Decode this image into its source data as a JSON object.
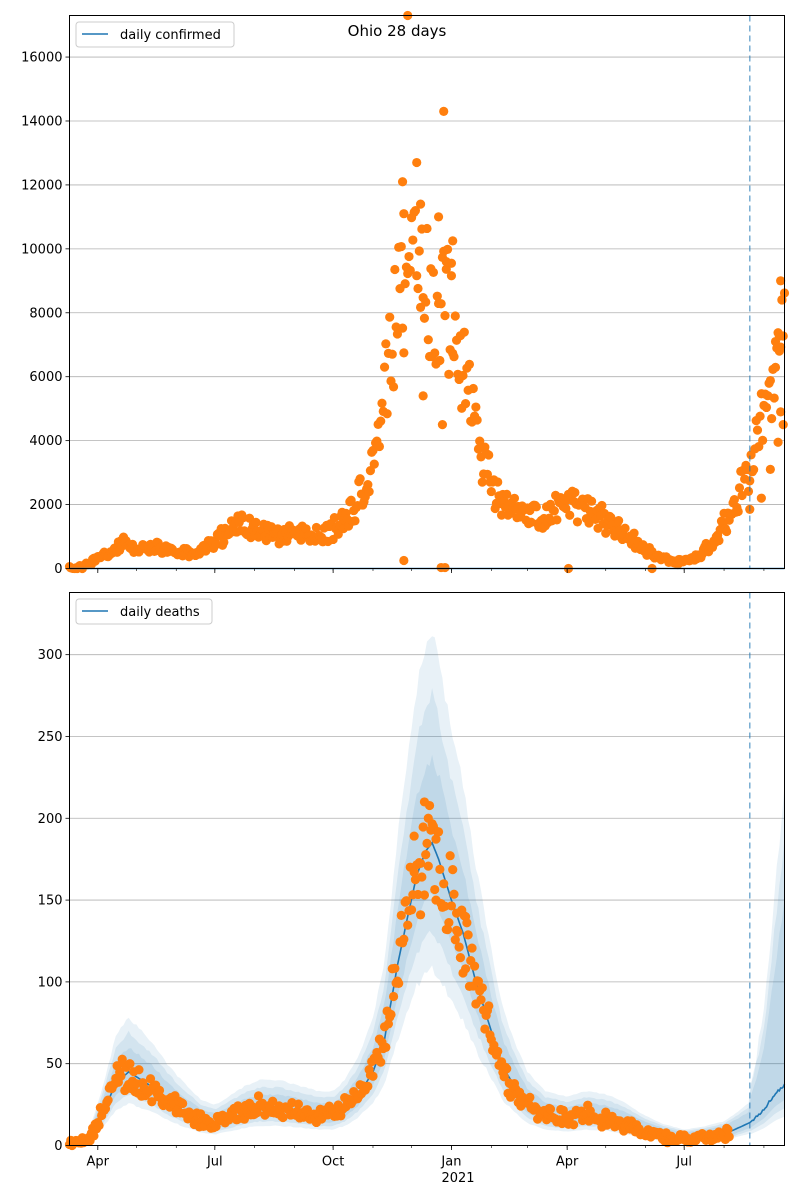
{
  "chart_data": [
    {
      "type": "scatter",
      "title": "Ohio 28 days",
      "xlabel": "",
      "ylabel": "",
      "x_tick_labels": [
        "Apr",
        "Jul",
        "Oct",
        "Jan",
        "Apr",
        "Jul"
      ],
      "x_tick_dates": [
        "2020-04-01",
        "2020-07-01",
        "2020-10-01",
        "2021-01-01",
        "2021-04-01",
        "2021-07-01"
      ],
      "x_year_label": "2021",
      "xlim": [
        "2020-03-10",
        "2021-09-17"
      ],
      "ylim": [
        0,
        17300
      ],
      "y_ticks": [
        0,
        2000,
        4000,
        6000,
        8000,
        10000,
        12000,
        14000,
        16000
      ],
      "grid": "y",
      "legend": {
        "position": "top-left",
        "entries": [
          "daily confirmed"
        ]
      },
      "vline_date": "2021-08-21",
      "colors": {
        "line": "#1f77b4",
        "points": "#ff7f0e",
        "vline": "#1f77b4"
      },
      "line_series": {
        "name": "daily confirmed",
        "value": 0
      },
      "anchors": [
        [
          "2020-03-10",
          10
        ],
        [
          "2020-03-20",
          50
        ],
        [
          "2020-03-31",
          300
        ],
        [
          "2020-04-10",
          450
        ],
        [
          "2020-04-20",
          800
        ],
        [
          "2020-05-01",
          600
        ],
        [
          "2020-05-15",
          650
        ],
        [
          "2020-06-01",
          550
        ],
        [
          "2020-06-15",
          420
        ],
        [
          "2020-07-01",
          850
        ],
        [
          "2020-07-15",
          1250
        ],
        [
          "2020-07-25",
          1400
        ],
        [
          "2020-08-05",
          1150
        ],
        [
          "2020-08-20",
          1050
        ],
        [
          "2020-09-01",
          1150
        ],
        [
          "2020-09-15",
          1000
        ],
        [
          "2020-10-01",
          1200
        ],
        [
          "2020-10-10",
          1500
        ],
        [
          "2020-10-20",
          2100
        ],
        [
          "2020-11-01",
          3300
        ],
        [
          "2020-11-10",
          5500
        ],
        [
          "2020-11-20",
          8100
        ],
        [
          "2020-12-01",
          9000
        ],
        [
          "2020-12-10",
          9300
        ],
        [
          "2020-12-20",
          8500
        ],
        [
          "2021-01-01",
          7800
        ],
        [
          "2021-01-10",
          6200
        ],
        [
          "2021-01-20",
          4300
        ],
        [
          "2021-02-01",
          2600
        ],
        [
          "2021-02-15",
          1900
        ],
        [
          "2021-03-01",
          1600
        ],
        [
          "2021-03-15",
          1650
        ],
        [
          "2021-04-01",
          2000
        ],
        [
          "2021-04-15",
          1800
        ],
        [
          "2021-05-01",
          1500
        ],
        [
          "2021-05-15",
          1100
        ],
        [
          "2021-06-01",
          600
        ],
        [
          "2021-06-15",
          300
        ],
        [
          "2021-06-25",
          200
        ],
        [
          "2021-07-10",
          300
        ],
        [
          "2021-07-25",
          900
        ],
        [
          "2021-08-05",
          1700
        ],
        [
          "2021-08-15",
          2600
        ],
        [
          "2021-08-25",
          3600
        ],
        [
          "2021-09-05",
          5500
        ],
        [
          "2021-09-17",
          7800
        ]
      ],
      "outliers": [
        [
          "2020-11-28",
          17300
        ],
        [
          "2020-12-26",
          14300
        ],
        [
          "2020-12-05",
          12700
        ],
        [
          "2020-11-24",
          12100
        ],
        [
          "2020-12-22",
          11000
        ],
        [
          "2020-12-08",
          11400
        ],
        [
          "2021-01-02",
          10250
        ],
        [
          "2020-11-25",
          11100
        ],
        [
          "2020-12-28",
          9600
        ],
        [
          "2021-01-01",
          9550
        ],
        [
          "2020-11-25",
          250
        ],
        [
          "2020-12-24",
          30
        ],
        [
          "2020-12-27",
          30
        ],
        [
          "2021-04-02",
          0
        ],
        [
          "2021-06-06",
          0
        ],
        [
          "2020-12-25",
          4500
        ],
        [
          "2020-12-10",
          5400
        ],
        [
          "2021-09-14",
          9000
        ],
        [
          "2021-09-15",
          8400
        ],
        [
          "2021-09-10",
          7100
        ],
        [
          "2021-09-13",
          6800
        ],
        [
          "2021-08-30",
          2200
        ],
        [
          "2021-08-21",
          1850
        ],
        [
          "2021-09-12",
          3950
        ],
        [
          "2021-09-06",
          3100
        ],
        [
          "2021-09-16",
          4500
        ],
        [
          "2021-09-14",
          4900
        ]
      ]
    },
    {
      "type": "line",
      "title": "",
      "xlabel": "",
      "ylabel": "",
      "x_tick_labels": [
        "Apr",
        "Jul",
        "Oct",
        "Jan",
        "Apr",
        "Jul"
      ],
      "x_tick_dates": [
        "2020-04-01",
        "2020-07-01",
        "2020-10-01",
        "2021-01-01",
        "2021-04-01",
        "2021-07-01"
      ],
      "x_year_label": "2021",
      "xlim": [
        "2020-03-10",
        "2021-09-17"
      ],
      "ylim": [
        0,
        338
      ],
      "y_ticks": [
        0,
        50,
        100,
        150,
        200,
        250,
        300
      ],
      "grid": "y",
      "legend": {
        "position": "top-left",
        "entries": [
          "daily deaths"
        ]
      },
      "vline_date": "2021-08-21",
      "colors": {
        "line": "#1f77b4",
        "points": "#ff7f0e",
        "band": "#1f77b4",
        "vline": "#1f77b4"
      },
      "series": [
        {
          "name": "daily deaths",
          "median": [
            [
              "2020-03-10",
              0
            ],
            [
              "2020-03-25",
              3
            ],
            [
              "2020-04-05",
              20
            ],
            [
              "2020-04-15",
              38
            ],
            [
              "2020-04-25",
              45
            ],
            [
              "2020-05-05",
              40
            ],
            [
              "2020-05-15",
              35
            ],
            [
              "2020-05-25",
              28
            ],
            [
              "2020-06-05",
              22
            ],
            [
              "2020-06-20",
              15
            ],
            [
              "2020-07-01",
              13
            ],
            [
              "2020-07-15",
              17
            ],
            [
              "2020-07-25",
              20
            ],
            [
              "2020-08-05",
              22
            ],
            [
              "2020-08-20",
              22
            ],
            [
              "2020-09-05",
              20
            ],
            [
              "2020-09-20",
              18
            ],
            [
              "2020-10-01",
              18
            ],
            [
              "2020-10-10",
              22
            ],
            [
              "2020-10-20",
              30
            ],
            [
              "2020-11-01",
              45
            ],
            [
              "2020-11-10",
              65
            ],
            [
              "2020-11-20",
              110
            ],
            [
              "2020-11-28",
              140
            ],
            [
              "2020-12-05",
              165
            ],
            [
              "2020-12-12",
              180
            ],
            [
              "2020-12-17",
              185
            ],
            [
              "2020-12-22",
              175
            ],
            [
              "2021-01-01",
              150
            ],
            [
              "2021-01-10",
              130
            ],
            [
              "2021-01-20",
              100
            ],
            [
              "2021-02-01",
              70
            ],
            [
              "2021-02-10",
              48
            ],
            [
              "2021-02-20",
              35
            ],
            [
              "2021-03-01",
              25
            ],
            [
              "2021-03-15",
              18
            ],
            [
              "2021-04-01",
              16
            ],
            [
              "2021-04-15",
              18
            ],
            [
              "2021-05-01",
              17
            ],
            [
              "2021-05-15",
              14
            ],
            [
              "2021-06-01",
              9
            ],
            [
              "2021-06-15",
              6
            ],
            [
              "2021-07-01",
              4
            ],
            [
              "2021-07-15",
              5
            ],
            [
              "2021-08-01",
              7
            ],
            [
              "2021-08-10",
              10
            ],
            [
              "2021-08-21",
              14
            ],
            [
              "2021-09-01",
              22
            ],
            [
              "2021-09-10",
              32
            ],
            [
              "2021-09-17",
              37
            ]
          ],
          "bands": [
            {
              "width": [
                0.65,
                0.7
              ],
              "future_mult": [
                1.05,
                4.8
              ]
            },
            {
              "width": [
                0.45,
                0.5
              ],
              "future_mult": [
                0.85,
                3.9
              ]
            },
            {
              "width": [
                0.25,
                0.3
              ],
              "future_mult": [
                0.6,
                2.9
              ]
            }
          ]
        }
      ],
      "points_anchors": [
        [
          "2020-03-10",
          0
        ],
        [
          "2020-03-25",
          4
        ],
        [
          "2020-04-05",
          22
        ],
        [
          "2020-04-12",
          35
        ],
        [
          "2020-04-20",
          45
        ],
        [
          "2020-05-01",
          38
        ],
        [
          "2020-05-15",
          33
        ],
        [
          "2020-06-01",
          24
        ],
        [
          "2020-06-15",
          16
        ],
        [
          "2020-07-01",
          13
        ],
        [
          "2020-07-20",
          20
        ],
        [
          "2020-08-05",
          24
        ],
        [
          "2020-08-25",
          22
        ],
        [
          "2020-09-10",
          19
        ],
        [
          "2020-10-01",
          20
        ],
        [
          "2020-10-15",
          26
        ],
        [
          "2020-10-28",
          40
        ],
        [
          "2020-11-10",
          70
        ],
        [
          "2020-11-20",
          115
        ],
        [
          "2020-11-30",
          160
        ],
        [
          "2020-12-08",
          180
        ],
        [
          "2020-12-15",
          188
        ],
        [
          "2020-12-22",
          170
        ],
        [
          "2021-01-01",
          148
        ],
        [
          "2021-01-10",
          128
        ],
        [
          "2021-01-20",
          98
        ],
        [
          "2021-02-01",
          65
        ],
        [
          "2021-02-10",
          45
        ],
        [
          "2021-02-25",
          28
        ],
        [
          "2021-03-10",
          20
        ],
        [
          "2021-04-01",
          16
        ],
        [
          "2021-04-15",
          19
        ],
        [
          "2021-05-01",
          16
        ],
        [
          "2021-05-20",
          12
        ],
        [
          "2021-06-05",
          8
        ],
        [
          "2021-06-20",
          5
        ],
        [
          "2021-07-10",
          4
        ],
        [
          "2021-07-30",
          6
        ],
        [
          "2021-08-05",
          8
        ]
      ],
      "points_end": "2021-08-05",
      "outliers": [
        [
          "2020-12-11",
          210
        ],
        [
          "2020-12-14",
          200
        ],
        [
          "2020-12-03",
          167
        ],
        [
          "2020-12-20",
          150
        ],
        [
          "2021-01-05",
          142
        ],
        [
          "2020-12-08",
          141
        ],
        [
          "2021-01-12",
          108
        ]
      ]
    }
  ]
}
